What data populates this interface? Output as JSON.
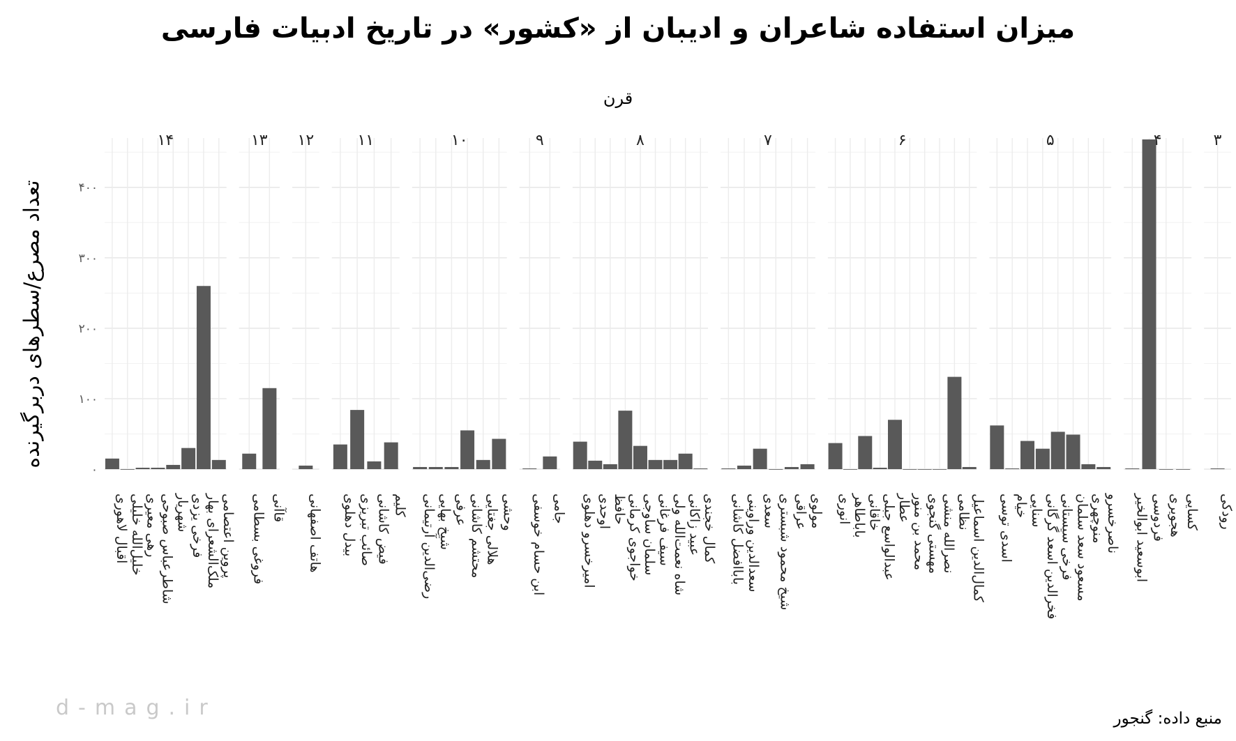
{
  "chart_data": {
    "type": "bar",
    "title": "میزان استفاده شاعران و ادیبان از «کشور» در تاریخ ادبیات فارسی",
    "facet_label": "قرن",
    "ylabel": "تعداد مصرع/سطرهای دربرگیرنده",
    "source": "منبع داده: گنجور",
    "watermark": "d-mag.ir",
    "ylim": [
      0,
      470
    ],
    "y_ticks": [
      0,
      100,
      200,
      300,
      400
    ],
    "y_tick_labels": [
      "۰",
      "۱۰۰",
      "۲۰۰",
      "۳۰۰",
      "۴۰۰"
    ],
    "grid": true,
    "bar_color": "#595959",
    "facets": [
      {
        "label": "۳",
        "poets": [
          "رودکی"
        ],
        "values": [
          1
        ]
      },
      {
        "label": "۴",
        "poets": [
          "ابوسعید ابوالخیر",
          "فردوسی",
          "هجویری",
          "کسایی"
        ],
        "values": [
          1,
          468,
          0,
          0
        ]
      },
      {
        "label": "۵",
        "poets": [
          "اسدی توسی",
          "خیام",
          "سنایی",
          "فخرالدین اسعد گرگانی",
          "فرخی سیستانی",
          "مسعود سعد سلمان",
          "منوچهری",
          "ناصرخسرو"
        ],
        "values": [
          62,
          1,
          40,
          29,
          53,
          49,
          7,
          3
        ]
      },
      {
        "label": "۶",
        "poets": [
          "انوری",
          "باباطاهر",
          "خاقانی",
          "عبدالواسع جبلی",
          "عطار",
          "محمد بن منور",
          "مهستی گنجوی",
          "نصرالله منشی",
          "نظامی",
          "کمال‌الدین اسماعیل"
        ],
        "values": [
          37,
          0,
          47,
          2,
          70,
          0,
          0,
          0,
          131,
          3
        ]
      },
      {
        "label": "۷",
        "poets": [
          "باباافضل کاشانی",
          "سعدالدین وراوینی",
          "سعدی",
          "شیخ محمود شبستری",
          "عراقی",
          "مولوی"
        ],
        "values": [
          1,
          5,
          29,
          0,
          3,
          7
        ]
      },
      {
        "label": "۸",
        "poets": [
          "امیرخسرو دهلوی",
          "اوحدی",
          "حافظ",
          "خواجوی کرمانی",
          "سلمان ساوجی",
          "سیف فرغانی",
          "شاه نعمت‌الله ولی",
          "عبید زاکانی",
          "کمال خجندی"
        ],
        "values": [
          39,
          12,
          7,
          83,
          33,
          13,
          13,
          22,
          1
        ]
      },
      {
        "label": "۹",
        "poets": [
          "ابن حسام خوسفی",
          "جامی"
        ],
        "values": [
          1,
          18
        ]
      },
      {
        "label": "۱۰",
        "poets": [
          "رضی‌الدین آرتیمانی",
          "شیخ بهایی",
          "عرفی",
          "محتشم کاشانی",
          "هلالی جغتایی",
          "وحشی"
        ],
        "values": [
          3,
          3,
          3,
          55,
          13,
          43
        ]
      },
      {
        "label": "۱۱",
        "poets": [
          "بیدل دهلوی",
          "صائب تبریزی",
          "فیض کاشانی",
          "کلیم"
        ],
        "values": [
          35,
          84,
          11,
          38
        ]
      },
      {
        "label": "۱۲",
        "poets": [
          "هاتف اصفهانی"
        ],
        "values": [
          5
        ]
      },
      {
        "label": "۱۳",
        "poets": [
          "فروغی بسطامی",
          "قاآنی"
        ],
        "values": [
          22,
          115
        ]
      },
      {
        "label": "۱۴",
        "poets": [
          "اقبال لاهوری",
          "خلیل‌الله خلیلی",
          "رهی معیری",
          "شاطرعباس صبوحی",
          "شهریار",
          "فرخی یزدی",
          "ملک‌الشعرای بهار",
          "پروین اعتصامی"
        ],
        "values": [
          15,
          0,
          2,
          2,
          6,
          30,
          260,
          13
        ]
      }
    ]
  }
}
